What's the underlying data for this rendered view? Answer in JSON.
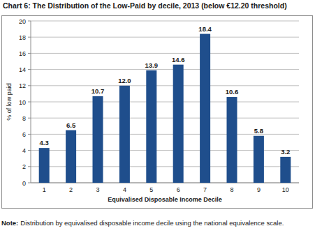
{
  "chart_data": {
    "type": "bar",
    "title": "Chart 6: The Distribution of the Low-Paid by decile, 2013 (below €12.20 threshold)",
    "x_label": "Equivalised Disposable Income Decile",
    "y_label": "% of low paid",
    "note_label": "Note:",
    "note": "Distribution by equivalised disposable income decile using the national equivalence scale.",
    "categories": [
      "1",
      "2",
      "3",
      "4",
      "5",
      "6",
      "7",
      "8",
      "9",
      "10"
    ],
    "values": [
      4.3,
      6.5,
      10.7,
      12.0,
      13.9,
      14.6,
      18.4,
      10.6,
      5.8,
      3.2
    ],
    "value_labels": [
      "4.3",
      "6.5",
      "10.7",
      "12.0",
      "13.9",
      "14.6",
      "18.4",
      "10.6",
      "5.8",
      "3.2"
    ],
    "color": "#1f4e8c",
    "ylim": [
      0,
      20
    ],
    "yticks": [
      0,
      2,
      4,
      6,
      8,
      10,
      12,
      14,
      16,
      18,
      20
    ],
    "grid": true,
    "data_labels": true
  }
}
